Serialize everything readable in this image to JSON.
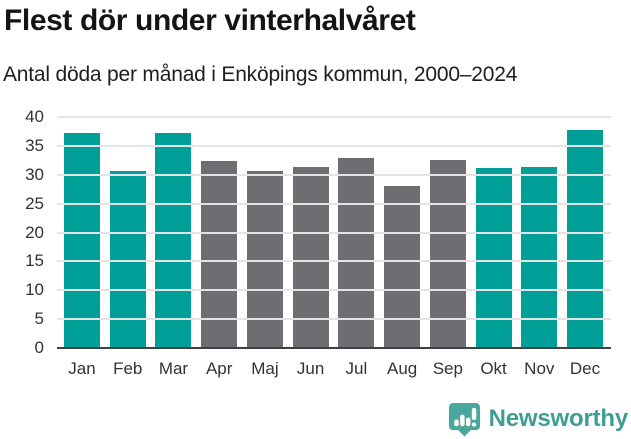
{
  "title": "Flest dör under vinterhalvåret",
  "subtitle": "Antal döda per månad i Enköpings kommun, 2000–2024",
  "chart_data": {
    "type": "bar",
    "title": "Flest dör under vinterhalvåret",
    "subtitle": "Antal döda per månad i Enköpings kommun, 2000–2024",
    "categories": [
      "Jan",
      "Feb",
      "Mar",
      "Apr",
      "Maj",
      "Jun",
      "Jul",
      "Aug",
      "Sep",
      "Okt",
      "Nov",
      "Dec"
    ],
    "values": [
      37.2,
      30.6,
      37.3,
      32.3,
      30.7,
      31.3,
      32.9,
      28.0,
      32.6,
      31.1,
      31.4,
      37.8
    ],
    "highlighted": [
      true,
      true,
      true,
      false,
      false,
      false,
      false,
      false,
      false,
      true,
      true,
      true
    ],
    "xlabel": "",
    "ylabel": "",
    "ylim": [
      0,
      40
    ],
    "yticks": [
      0,
      5,
      10,
      15,
      20,
      25,
      30,
      35,
      40
    ],
    "grid": true,
    "legend": "none",
    "colors": {
      "highlight": "#00a099",
      "default": "#6d6d72",
      "gridline": "#e4e4e4",
      "axis": "#3d4145",
      "tick_text": "#333333"
    }
  },
  "footer": {
    "brand": "Newsworthy",
    "logo_icon": "newsworthy-pin-chart-icon",
    "brand_color": "#3f9e92",
    "icon_color": "#4aa79b"
  }
}
